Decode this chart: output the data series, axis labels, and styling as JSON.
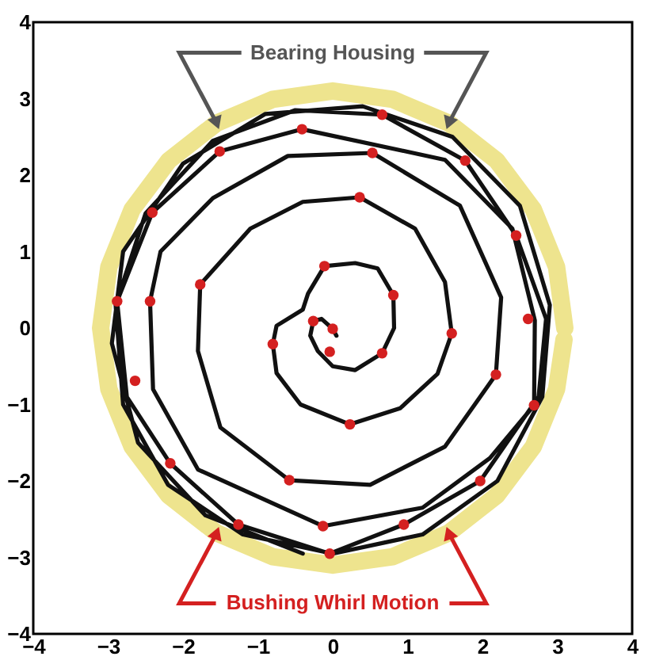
{
  "chart_data": {
    "type": "line",
    "xlim": [
      -4,
      4
    ],
    "ylim": [
      -4,
      4
    ],
    "xticks": [
      -4,
      -3,
      -2,
      -1,
      0,
      1,
      2,
      3,
      4
    ],
    "yticks": [
      -4,
      -3,
      -2,
      -1,
      0,
      1,
      2,
      3,
      4
    ],
    "grid": false,
    "annotations": [
      {
        "text": "Bearing Housing",
        "x": -1.55,
        "y": 2.68
      },
      {
        "text": "Bushing Whirl Motion",
        "x": -1.55,
        "y": -2.68
      }
    ],
    "series": [
      {
        "color": "#eee48e",
        "x": [
          3.1,
          2.99,
          2.68,
          2.19,
          1.55,
          0.8,
          0,
          -0.8,
          -1.55,
          -2.19,
          -2.68,
          -2.99,
          -3.1,
          -2.99,
          -2.68,
          -2.19,
          -1.55,
          -0.8,
          0,
          0.8,
          1.55,
          2.19,
          2.68,
          2.99,
          3.09
        ],
        "values": [
          0,
          0.8,
          1.55,
          2.19,
          2.68,
          2.99,
          3.1,
          2.99,
          2.68,
          2.19,
          1.55,
          0.8,
          0,
          -0.8,
          -1.55,
          -2.19,
          -2.68,
          -2.99,
          -3.1,
          -2.99,
          -2.68,
          -2.19,
          -1.55,
          -0.8,
          -0.15
        ]
      },
      {
        "color": "#111111",
        "x": [
          0.05,
          0,
          -0.15,
          -0.26,
          -0.3,
          -0.2,
          0,
          0.3,
          0.66,
          0.82,
          0.81,
          0.6,
          0.3,
          -0.11,
          -0.33,
          -0.4,
          -0.75,
          -0.8,
          -0.75,
          -0.43,
          0.23,
          0.9,
          1.4,
          1.59,
          1.5,
          1.1,
          0.36,
          -0.4,
          -1.1,
          -1.77,
          -1.8,
          -1.5,
          -0.58,
          0.5,
          1.5,
          2.18,
          2.25,
          1.7,
          0.53,
          -0.6,
          -1.6,
          -2.3,
          -2.44,
          -2.4,
          -1.8,
          -0.13,
          1.2,
          2.1,
          2.69,
          2.7,
          2.4,
          1.5,
          -0.41,
          -1.51,
          -2.41,
          -2.88,
          -2.75,
          -2.17,
          -1.26,
          -0.04,
          0.95,
          1.97,
          2.75,
          2.85,
          2.45,
          1.77,
          0.66,
          -0.5,
          -1.6,
          -2.5,
          -2.9,
          -2.8,
          -2.2,
          -1.2,
          0,
          1.2,
          2.2,
          2.8,
          2.9,
          2.5,
          1.6,
          0.4,
          -0.9,
          -2.0,
          -2.8,
          -2.95,
          -2.6,
          -1.7,
          -0.4
        ],
        "values": [
          -0.1,
          -0.01,
          0.12,
          0.09,
          -0.1,
          -0.3,
          -0.5,
          -0.55,
          -0.33,
          0,
          0.43,
          0.78,
          0.85,
          0.81,
          0.45,
          0.24,
          0.03,
          -0.21,
          -0.59,
          -1.0,
          -1.26,
          -1.05,
          -0.6,
          -0.07,
          0.6,
          1.3,
          1.71,
          1.65,
          1.3,
          0.57,
          -0.3,
          -1.3,
          -1.99,
          -2.05,
          -1.55,
          -0.61,
          0.4,
          1.6,
          2.29,
          2.25,
          1.7,
          1.0,
          0.35,
          -0.8,
          -1.85,
          -2.59,
          -2.35,
          -1.7,
          -1.01,
          0.1,
          1.3,
          2.2,
          2.6,
          2.31,
          1.51,
          0.35,
          -0.9,
          -1.77,
          -2.57,
          -2.95,
          -2.57,
          -2.0,
          -0.9,
          0.12,
          1.21,
          2.19,
          2.79,
          2.85,
          2.45,
          1.5,
          0.3,
          -1.0,
          -2.05,
          -2.7,
          -2.95,
          -2.7,
          -2.0,
          -0.9,
          0.3,
          1.6,
          2.5,
          2.9,
          2.8,
          2.15,
          1.0,
          -0.2,
          -1.5,
          -2.45,
          -2.95
        ]
      },
      {
        "type": "scatter",
        "color": "#d42020",
        "x": [
          -0.11,
          0.81,
          -0.26,
          0,
          -0.8,
          -0.04,
          0.66,
          0.23,
          0.66,
          -0.41,
          0.53,
          -1.51,
          0.36,
          1.77,
          2.45,
          -2.41,
          -2.88,
          -2.44,
          -1.77,
          2.61,
          1.59,
          2.18,
          2.69,
          -2.64,
          -0.58,
          1.97,
          -2.17,
          -0.13,
          0.95,
          -1.26,
          -0.04
        ],
        "values": [
          0.81,
          0.43,
          0.09,
          -0.01,
          -0.21,
          -0.31,
          -0.33,
          -1.26,
          2.79,
          2.6,
          2.29,
          2.31,
          1.71,
          2.19,
          1.21,
          1.51,
          0.35,
          0.35,
          0.57,
          0.12,
          -0.07,
          -0.61,
          -1.01,
          -0.69,
          -1.99,
          -2.0,
          -1.77,
          -2.59,
          -2.57,
          -2.57,
          -2.95
        ]
      }
    ]
  }
}
